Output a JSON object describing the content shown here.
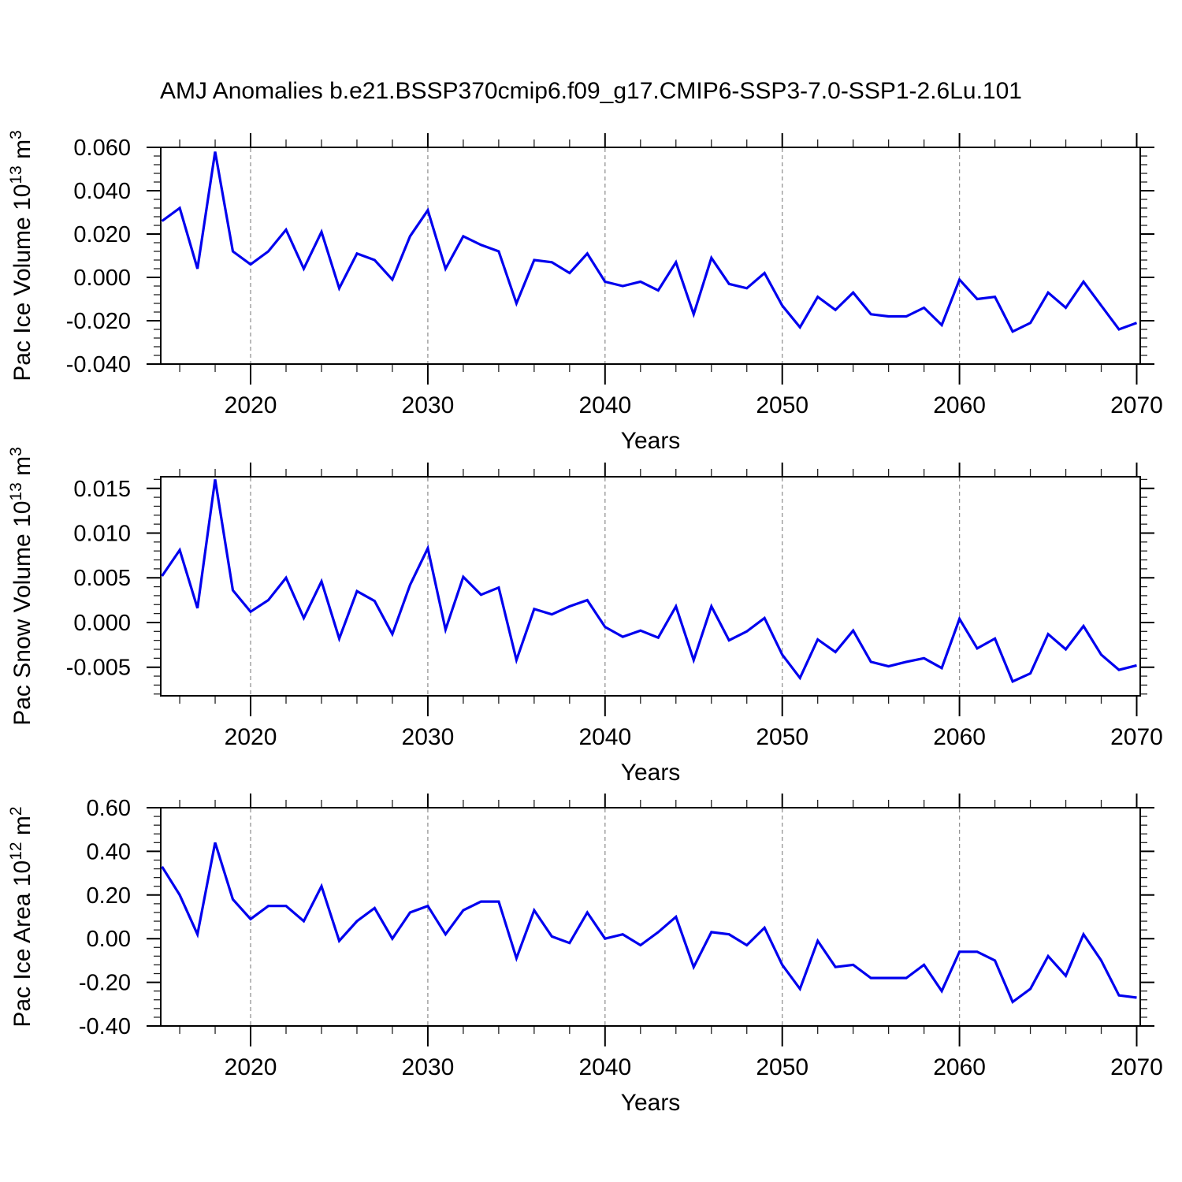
{
  "title": "AMJ Anomalies b.e21.BSSP370cmip6.f09_g17.CMIP6-SSP3-7.0-SSP1-2.6Lu.101",
  "style": {
    "line_color": "#0000ee",
    "grid_color": "#949494",
    "axis_color": "#000000",
    "background": "#ffffff"
  },
  "chart_data": [
    {
      "type": "line",
      "name": "pac-ice-volume",
      "ylabel": "Pac Ice Volume 10¹³ m³",
      "ylabel_parts": [
        {
          "t": "Pac Ice Volume 10",
          "sup": false
        },
        {
          "t": "13",
          "sup": true
        },
        {
          "t": " m",
          "sup": false
        },
        {
          "t": "3",
          "sup": true
        }
      ],
      "xlabel": "Years",
      "ylim": [
        -0.04,
        0.06
      ],
      "xlim": [
        2014.93,
        2070.2
      ],
      "yticks": [
        0.06,
        0.04,
        0.02,
        0.0,
        -0.02,
        -0.04
      ],
      "ytick_labels": [
        "0.060",
        "0.040",
        "0.020",
        "0.000",
        "-0.020",
        "-0.040"
      ],
      "y_minor_step": 0.004,
      "xticks": [
        2020,
        2030,
        2040,
        2050,
        2060,
        2070
      ],
      "xtick_labels": [
        "2020",
        "2030",
        "2040",
        "2050",
        "2060",
        "2070"
      ],
      "x_minor_step": 2,
      "grid_x": [
        2020,
        2030,
        2040,
        2050,
        2060
      ],
      "legend": "none",
      "x": [
        2015,
        2016,
        2017,
        2018,
        2019,
        2020,
        2021,
        2022,
        2023,
        2024,
        2025,
        2026,
        2027,
        2028,
        2029,
        2030,
        2031,
        2032,
        2033,
        2034,
        2035,
        2036,
        2037,
        2038,
        2039,
        2040,
        2041,
        2042,
        2043,
        2044,
        2045,
        2046,
        2047,
        2048,
        2049,
        2050,
        2051,
        2052,
        2053,
        2054,
        2055,
        2056,
        2057,
        2058,
        2059,
        2060,
        2061,
        2062,
        2063,
        2064,
        2065,
        2066,
        2067,
        2068,
        2069,
        2070
      ],
      "values": [
        0.026,
        0.032,
        0.004,
        0.058,
        0.012,
        0.006,
        0.012,
        0.022,
        0.004,
        0.021,
        -0.005,
        0.011,
        0.008,
        -0.001,
        0.019,
        0.031,
        0.004,
        0.019,
        0.015,
        0.012,
        -0.012,
        0.008,
        0.007,
        0.002,
        0.011,
        -0.002,
        -0.004,
        -0.002,
        -0.006,
        0.007,
        -0.017,
        0.009,
        -0.003,
        -0.005,
        0.002,
        -0.013,
        -0.023,
        -0.009,
        -0.015,
        -0.007,
        -0.017,
        -0.018,
        -0.018,
        -0.014,
        -0.022,
        -0.001,
        -0.01,
        -0.009,
        -0.025,
        -0.021,
        -0.007,
        -0.014,
        -0.002,
        -0.013,
        -0.024,
        -0.021
      ]
    },
    {
      "type": "line",
      "name": "pac-snow-volume",
      "ylabel": "Pac Snow Volume 10¹³ m³",
      "ylabel_parts": [
        {
          "t": "Pac Snow Volume 10",
          "sup": false
        },
        {
          "t": "13",
          "sup": true
        },
        {
          "t": " m",
          "sup": false
        },
        {
          "t": "3",
          "sup": true
        }
      ],
      "xlabel": "Years",
      "ylim": [
        -0.0082,
        0.0163
      ],
      "xlim": [
        2014.93,
        2070.2
      ],
      "yticks": [
        0.015,
        0.01,
        0.005,
        0.0,
        -0.005
      ],
      "ytick_labels": [
        "0.015",
        "0.010",
        "0.005",
        "0.000",
        "-0.005"
      ],
      "y_minor_step": 0.001,
      "xticks": [
        2020,
        2030,
        2040,
        2050,
        2060,
        2070
      ],
      "xtick_labels": [
        "2020",
        "2030",
        "2040",
        "2050",
        "2060",
        "2070"
      ],
      "x_minor_step": 2,
      "grid_x": [
        2020,
        2030,
        2040,
        2050,
        2060
      ],
      "legend": "none",
      "x": [
        2015,
        2016,
        2017,
        2018,
        2019,
        2020,
        2021,
        2022,
        2023,
        2024,
        2025,
        2026,
        2027,
        2028,
        2029,
        2030,
        2031,
        2032,
        2033,
        2034,
        2035,
        2036,
        2037,
        2038,
        2039,
        2040,
        2041,
        2042,
        2043,
        2044,
        2045,
        2046,
        2047,
        2048,
        2049,
        2050,
        2051,
        2052,
        2053,
        2054,
        2055,
        2056,
        2057,
        2058,
        2059,
        2060,
        2061,
        2062,
        2063,
        2064,
        2065,
        2066,
        2067,
        2068,
        2069,
        2070
      ],
      "values": [
        0.0052,
        0.0081,
        0.0016,
        0.016,
        0.0036,
        0.0012,
        0.0025,
        0.005,
        0.0005,
        0.0046,
        -0.0018,
        0.0035,
        0.0024,
        -0.0013,
        0.0042,
        0.0083,
        -0.0008,
        0.0051,
        0.0031,
        0.0039,
        -0.0042,
        0.0015,
        0.0009,
        0.0018,
        0.0025,
        -0.0005,
        -0.0016,
        -0.0009,
        -0.0017,
        0.0018,
        -0.0042,
        0.0018,
        -0.002,
        -0.001,
        0.0005,
        -0.0036,
        -0.0062,
        -0.0019,
        -0.0033,
        -0.0009,
        -0.0044,
        -0.0049,
        -0.0044,
        -0.004,
        -0.0051,
        0.0004,
        -0.0029,
        -0.0018,
        -0.0066,
        -0.0057,
        -0.0013,
        -0.003,
        -0.0004,
        -0.0036,
        -0.0053,
        -0.0048
      ]
    },
    {
      "type": "line",
      "name": "pac-ice-area",
      "ylabel": "Pac Ice Area 10¹² m²",
      "ylabel_parts": [
        {
          "t": "Pac Ice Area 10",
          "sup": false
        },
        {
          "t": "12",
          "sup": true
        },
        {
          "t": " m",
          "sup": false
        },
        {
          "t": "2",
          "sup": true
        }
      ],
      "xlabel": "Years",
      "ylim": [
        -0.4,
        0.6
      ],
      "xlim": [
        2014.93,
        2070.2
      ],
      "yticks": [
        0.6,
        0.4,
        0.2,
        0.0,
        -0.2,
        -0.4
      ],
      "ytick_labels": [
        "0.60",
        "0.40",
        "0.20",
        "0.00",
        "-0.20",
        "-0.40"
      ],
      "y_minor_step": 0.04,
      "xticks": [
        2020,
        2030,
        2040,
        2050,
        2060,
        2070
      ],
      "xtick_labels": [
        "2020",
        "2030",
        "2040",
        "2050",
        "2060",
        "2070"
      ],
      "x_minor_step": 2,
      "grid_x": [
        2020,
        2030,
        2040,
        2050,
        2060
      ],
      "legend": "none",
      "x": [
        2015,
        2016,
        2017,
        2018,
        2019,
        2020,
        2021,
        2022,
        2023,
        2024,
        2025,
        2026,
        2027,
        2028,
        2029,
        2030,
        2031,
        2032,
        2033,
        2034,
        2035,
        2036,
        2037,
        2038,
        2039,
        2040,
        2041,
        2042,
        2043,
        2044,
        2045,
        2046,
        2047,
        2048,
        2049,
        2050,
        2051,
        2052,
        2053,
        2054,
        2055,
        2056,
        2057,
        2058,
        2059,
        2060,
        2061,
        2062,
        2063,
        2064,
        2065,
        2066,
        2067,
        2068,
        2069,
        2070
      ],
      "values": [
        0.33,
        0.2,
        0.02,
        0.44,
        0.18,
        0.09,
        0.15,
        0.15,
        0.08,
        0.24,
        -0.01,
        0.08,
        0.14,
        0.0,
        0.12,
        0.15,
        0.02,
        0.13,
        0.17,
        0.17,
        -0.09,
        0.13,
        0.01,
        -0.02,
        0.12,
        0.0,
        0.02,
        -0.03,
        0.03,
        0.1,
        -0.13,
        0.03,
        0.02,
        -0.03,
        0.05,
        -0.12,
        -0.23,
        -0.01,
        -0.13,
        -0.12,
        -0.18,
        -0.18,
        -0.18,
        -0.12,
        -0.24,
        -0.06,
        -0.06,
        -0.1,
        -0.29,
        -0.23,
        -0.08,
        -0.17,
        0.02,
        -0.1,
        -0.26,
        -0.27
      ]
    }
  ]
}
